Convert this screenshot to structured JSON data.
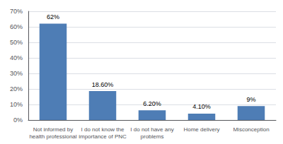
{
  "chart_data": {
    "type": "bar",
    "categories": [
      "Not informed by\nhealth professional",
      "I do not know the\nimportance of PNC",
      "I do not have any\nproblems",
      "Home delivery",
      "Misconception"
    ],
    "values": [
      62,
      18.6,
      6.2,
      4.1,
      9
    ],
    "value_labels": [
      "62%",
      "18.60%",
      "6.20%",
      "4.10%",
      "9%"
    ],
    "data_labels": true,
    "color": "#4e7db5",
    "ylim": [
      0,
      70
    ],
    "yticks": [
      {
        "value": 0,
        "label": "0%"
      },
      {
        "value": 10,
        "label": "10%"
      },
      {
        "value": 20,
        "label": "20%"
      },
      {
        "value": 30,
        "label": "30%"
      },
      {
        "value": 40,
        "label": "40%"
      },
      {
        "value": 50,
        "label": "50%"
      },
      {
        "value": 60,
        "label": "60%"
      },
      {
        "value": 70,
        "label": "70%"
      }
    ],
    "grid": true
  }
}
